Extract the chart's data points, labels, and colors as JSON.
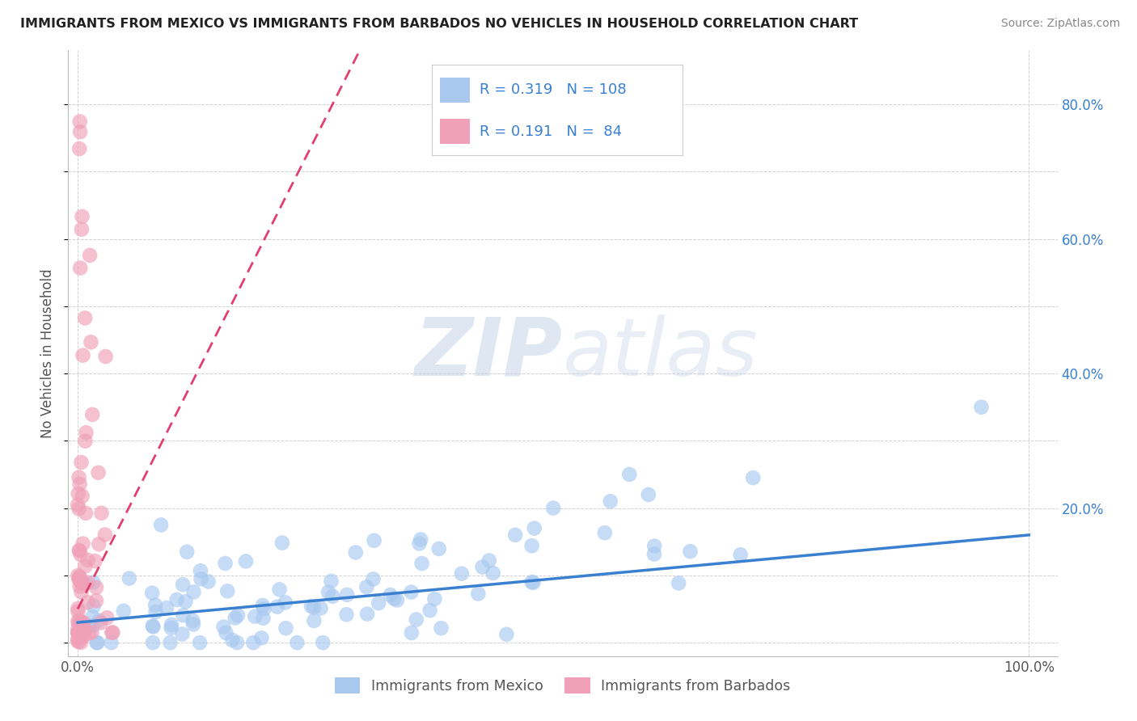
{
  "title": "IMMIGRANTS FROM MEXICO VS IMMIGRANTS FROM BARBADOS NO VEHICLES IN HOUSEHOLD CORRELATION CHART",
  "source": "Source: ZipAtlas.com",
  "ylabel": "No Vehicles in Household",
  "legend_mexico": "Immigrants from Mexico",
  "legend_barbados": "Immigrants from Barbados",
  "mexico_R": 0.319,
  "mexico_N": 108,
  "barbados_R": 0.191,
  "barbados_N": 84,
  "mexico_color": "#a8c8f0",
  "barbados_color": "#f0a0b8",
  "mexico_line_color": "#3a80d0",
  "barbados_line_color": "#e04070",
  "watermark_zip": "ZIP",
  "watermark_atlas": "atlas",
  "xlim_min": -0.01,
  "xlim_max": 1.03,
  "ylim_min": -0.02,
  "ylim_max": 0.88,
  "yticks": [
    0.2,
    0.4,
    0.6,
    0.8
  ],
  "ytick_labels": [
    "20.0%",
    "40.0%",
    "60.0%",
    "80.0%"
  ],
  "xtick_labels": [
    "0.0%",
    "100.0%"
  ],
  "xticks": [
    0.0,
    1.0
  ],
  "title_fontsize": 11.5,
  "axis_fontsize": 12,
  "mex_line_slope": 0.13,
  "mex_line_intercept": 0.03,
  "bar_line_slope": 2.8,
  "bar_line_intercept": 0.05
}
